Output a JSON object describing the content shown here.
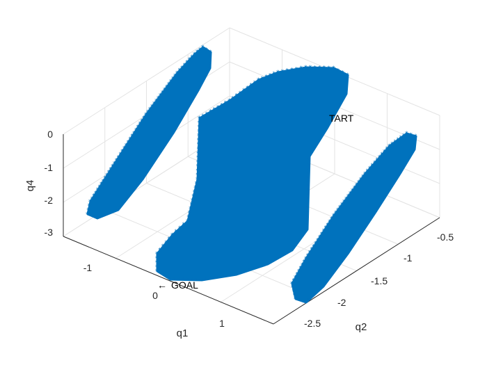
{
  "chart_data": {
    "type": "scatter3d",
    "title": "",
    "xlabel": "q1",
    "ylabel": "q2",
    "zlabel": "q4",
    "xlim": [
      -1.6,
      1.6
    ],
    "ylim": [
      -2.8,
      -0.3
    ],
    "zlim": [
      -3.2,
      0.1
    ],
    "x_ticks": [
      -1,
      0,
      1
    ],
    "x_tick_labels": [
      "-1",
      "0",
      "1"
    ],
    "y_ticks": [
      -2.5,
      -2,
      -1.5,
      -1,
      -0.5
    ],
    "y_tick_labels": [
      "-2.5",
      "-2",
      "-1.5",
      "-1",
      "-0.5"
    ],
    "z_ticks": [
      -3,
      -2,
      -1,
      0
    ],
    "z_tick_labels": [
      "-3",
      "-2",
      "-1",
      "0"
    ],
    "grid": true,
    "marker_color": "#0072BD",
    "regions": [
      {
        "name": "",
        "description": "left thin slab",
        "q1_range": [
          -1.5,
          -0.6
        ],
        "q2_range": [
          -2.3,
          -0.9
        ],
        "q4_range": [
          -3.0,
          0.0
        ]
      },
      {
        "name": "",
        "description": "central slab",
        "q1_range": [
          -0.1,
          1.2
        ],
        "q2_range": [
          -2.5,
          -0.6
        ],
        "q4_range": [
          -3.1,
          0.0
        ]
      },
      {
        "name": "",
        "description": "right thin slab",
        "q1_range": [
          0.7,
          1.5
        ],
        "q2_range": [
          -2.6,
          -1.2
        ],
        "q4_range": [
          -3.1,
          -0.2
        ]
      }
    ],
    "annotations": [
      {
        "text": "TART"
      },
      {
        "text": "GOAL",
        "arrow": "←"
      }
    ]
  }
}
